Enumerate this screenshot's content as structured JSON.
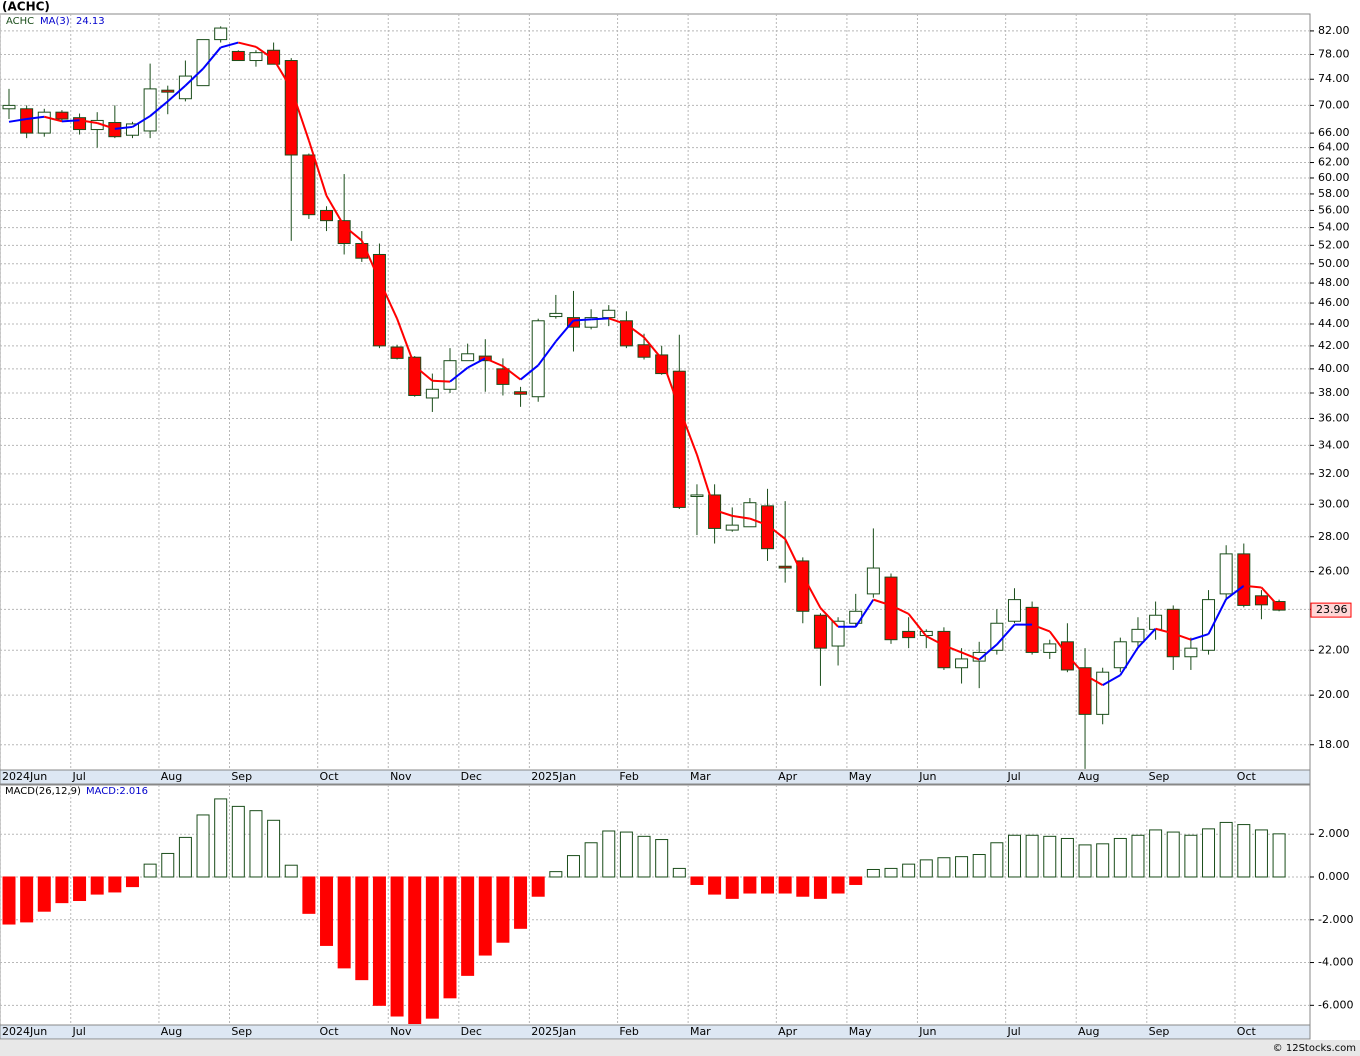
{
  "chart_data": [
    {
      "type": "candlestick",
      "title": "(ACHC)",
      "symbol": "ACHC",
      "categories": [
        "2024Jun",
        null,
        null,
        null,
        "Jul",
        null,
        null,
        null,
        null,
        "Aug",
        null,
        null,
        null,
        "Sep",
        null,
        null,
        null,
        null,
        "Oct",
        null,
        null,
        null,
        "Nov",
        null,
        null,
        null,
        "Dec",
        null,
        null,
        null,
        "2025Jan",
        null,
        null,
        null,
        null,
        "Feb",
        null,
        null,
        null,
        "Mar",
        null,
        null,
        null,
        null,
        "Apr",
        null,
        null,
        null,
        "May",
        null,
        null,
        null,
        "Jun",
        null,
        null,
        null,
        null,
        "Jul",
        null,
        null,
        null,
        "Aug",
        null,
        null,
        null,
        "Sep",
        null,
        null,
        null,
        null,
        "Oct",
        null,
        null
      ],
      "open": [
        69.5,
        69.5,
        66,
        69,
        68.2,
        66.5,
        67.5,
        65.7,
        66.3,
        72.3,
        71,
        73,
        80.5,
        78.5,
        77,
        78.7,
        77,
        63,
        56,
        54.8,
        52.2,
        51,
        41.9,
        41,
        37.6,
        38.3,
        40.7,
        41.1,
        40,
        38.1,
        37.7,
        44.7,
        44.6,
        43.7,
        44.6,
        44.3,
        42.1,
        41.2,
        39.8,
        30.5,
        30.6,
        28.4,
        28.6,
        29.9,
        26.3,
        26.6,
        23.7,
        22.2,
        23.3,
        24.8,
        25.7,
        22.9,
        22.7,
        22.9,
        21.2,
        21.5,
        22,
        23.4,
        24.1,
        21.9,
        22.4,
        21.2,
        19.2,
        21.2,
        22.4,
        23,
        24,
        21.7,
        22,
        24.8,
        27,
        24.7,
        24.4
      ],
      "high": [
        72.5,
        70,
        69.5,
        69.3,
        68.8,
        69,
        70,
        67.6,
        76.5,
        73,
        77,
        80.5,
        82.8,
        78.7,
        78.7,
        80,
        77.4,
        63.2,
        56.5,
        60.5,
        53.6,
        52.2,
        42.1,
        41.1,
        39.6,
        41.8,
        42.2,
        42.6,
        40.9,
        38.5,
        44.5,
        46.8,
        47.2,
        45.4,
        45.8,
        45.2,
        43.1,
        42,
        43,
        31.3,
        31.3,
        29.8,
        30.4,
        31,
        30.2,
        26.8,
        23.8,
        23.6,
        24.8,
        28.5,
        25.9,
        23.6,
        23,
        23.1,
        22.1,
        22.4,
        24,
        25.1,
        24.4,
        22.5,
        23.3,
        22.1,
        21.2,
        22.6,
        23.6,
        24.4,
        24.2,
        22.6,
        25,
        27.5,
        27.6,
        25,
        24.5
      ],
      "low": [
        68,
        65.3,
        65.5,
        67.6,
        65.8,
        64,
        65.3,
        65.3,
        65.3,
        68.7,
        70.6,
        73,
        80,
        77,
        76,
        76.4,
        52.5,
        55,
        53.6,
        51,
        50.2,
        41.8,
        40.8,
        37.7,
        36.5,
        38,
        40.7,
        38.1,
        37.8,
        36.9,
        37.3,
        44.5,
        41.5,
        43.5,
        43.8,
        41.8,
        40.8,
        39.5,
        29.7,
        28.1,
        27.6,
        28.3,
        28.6,
        26.6,
        25.4,
        23.3,
        20.4,
        21.3,
        23.1,
        24.6,
        22.3,
        22.1,
        22.1,
        21.1,
        20.5,
        20.3,
        21.8,
        23.3,
        21.8,
        21.6,
        21,
        17.1,
        18.8,
        21,
        22.1,
        22.5,
        21.1,
        21.1,
        21.8,
        24.5,
        24.1,
        23.5,
        23.9
      ],
      "close": [
        70,
        66,
        69,
        68,
        66.5,
        67.8,
        65.5,
        67.3,
        72.5,
        72,
        74.5,
        80.5,
        82.5,
        77,
        78.3,
        76.4,
        63,
        55.5,
        54.8,
        52.2,
        50.6,
        42,
        40.9,
        37.8,
        38.3,
        40.7,
        41.3,
        40.7,
        38.7,
        37.9,
        44.3,
        45,
        43.7,
        44.6,
        45.3,
        42,
        41,
        39.6,
        29.8,
        30.6,
        28.5,
        28.7,
        30.1,
        27.3,
        26.2,
        23.9,
        22.1,
        23.4,
        23.9,
        26.2,
        22.5,
        22.6,
        22.9,
        21.2,
        21.6,
        21.9,
        23.3,
        24.5,
        21.9,
        22.3,
        21.1,
        19.2,
        21,
        22.4,
        23,
        23.7,
        21.7,
        22.1,
        24.5,
        27,
        24.2,
        24.23,
        23.96
      ],
      "up_color": "#ffffff",
      "down_color": "#ff0000",
      "edge_color": "#1a4d1a",
      "ma": {
        "name": "MA(3)",
        "up_color": "#0000ff",
        "down_color": "#ff0000",
        "values": [
          67.6,
          68,
          68.33,
          67.67,
          67.83,
          67.43,
          66.6,
          66.87,
          68.43,
          70.6,
          73,
          75.67,
          79.17,
          80,
          79.27,
          77.23,
          72.57,
          64.97,
          57.77,
          54.17,
          52.53,
          48.27,
          44.5,
          40.23,
          39,
          38.93,
          40.1,
          40.9,
          40.23,
          39.1,
          40.3,
          42.4,
          44.33,
          44.43,
          44.53,
          43.97,
          42.77,
          40.87,
          36.8,
          33.33,
          29.63,
          29.27,
          29.1,
          28.7,
          27.87,
          25.8,
          24.07,
          23.13,
          23.13,
          24.5,
          24.2,
          23.77,
          22.67,
          22.23,
          21.9,
          21.57,
          22.27,
          23.23,
          23.23,
          22.9,
          21.77,
          20.87,
          20.43,
          20.87,
          22.13,
          23.03,
          22.8,
          22.5,
          22.77,
          24.53,
          25.23,
          25.14,
          24.13
        ]
      },
      "log_scale": true,
      "grid": true,
      "ylim": [
        17.06,
        85.0
      ],
      "yticks": [
        {
          "value": 18,
          "label": "18.00"
        },
        {
          "value": 20,
          "label": "20.00"
        },
        {
          "value": 22,
          "label": "22.00"
        },
        {
          "value": 24,
          "label": "24.00"
        },
        {
          "value": 26,
          "label": "26.00"
        },
        {
          "value": 28,
          "label": "28.00"
        },
        {
          "value": 30,
          "label": "30.00"
        },
        {
          "value": 32,
          "label": "32.00"
        },
        {
          "value": 34,
          "label": "34.00"
        },
        {
          "value": 36,
          "label": "36.00"
        },
        {
          "value": 38,
          "label": "38.00"
        },
        {
          "value": 40,
          "label": "40.00"
        },
        {
          "value": 42,
          "label": "42.00"
        },
        {
          "value": 44,
          "label": "44.00"
        },
        {
          "value": 46,
          "label": "46.00"
        },
        {
          "value": 48,
          "label": "48.00"
        },
        {
          "value": 50,
          "label": "50.00"
        },
        {
          "value": 52,
          "label": "52.00"
        },
        {
          "value": 54,
          "label": "54.00"
        },
        {
          "value": 56,
          "label": "56.00"
        },
        {
          "value": 58,
          "label": "58.00"
        },
        {
          "value": 60,
          "label": "60.00"
        },
        {
          "value": 62,
          "label": "62.00"
        },
        {
          "value": 64,
          "label": "64.00"
        },
        {
          "value": 66,
          "label": "66.00"
        },
        {
          "value": 70,
          "label": "70.00"
        },
        {
          "value": 74,
          "label": "74.00"
        },
        {
          "value": 78,
          "label": "78.00"
        },
        {
          "value": 82,
          "label": "82.00"
        }
      ]
    },
    {
      "type": "macd",
      "title": "MACD(26,12,9)",
      "legend_label": "MACD:2.016",
      "values": [
        -2.2,
        -2.1,
        -1.6,
        -1.2,
        -1.1,
        -0.8,
        -0.7,
        -0.45,
        0.6,
        1.1,
        1.85,
        2.9,
        3.65,
        3.3,
        3.1,
        2.65,
        0.55,
        -1.7,
        -3.2,
        -4.25,
        -4.8,
        -6.0,
        -6.5,
        -6.85,
        -6.6,
        -5.65,
        -4.6,
        -3.65,
        -3.05,
        -2.4,
        -0.9,
        0.25,
        1.0,
        1.6,
        2.15,
        2.1,
        1.9,
        1.75,
        0.4,
        -0.35,
        -0.8,
        -1.0,
        -0.75,
        -0.75,
        -0.75,
        -0.9,
        -1.0,
        -0.75,
        -0.35,
        0.35,
        0.4,
        0.6,
        0.8,
        0.9,
        0.95,
        1.05,
        1.6,
        1.95,
        1.95,
        1.9,
        1.8,
        1.5,
        1.55,
        1.8,
        1.95,
        2.2,
        2.1,
        1.95,
        2.25,
        2.55,
        2.45,
        2.2,
        2.016
      ],
      "positive_color": "#ffffff",
      "negative_color": "#ff0000",
      "edge_color": "#1a4d1a",
      "grid": true,
      "ylim": [
        -6.92,
        4.3
      ],
      "yticks": [
        {
          "value": -6,
          "label": "-6.000"
        },
        {
          "value": -4,
          "label": "-4.000"
        },
        {
          "value": -2,
          "label": "-2.000"
        },
        {
          "value": 0,
          "label": "0.000"
        },
        {
          "value": 2,
          "label": "2.000"
        }
      ]
    }
  ],
  "footer": "© 12Stocks.com"
}
